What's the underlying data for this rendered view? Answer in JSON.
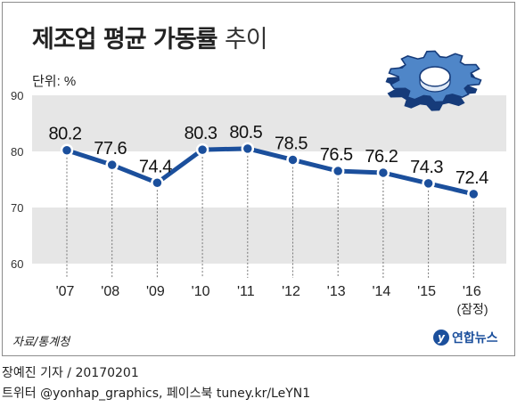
{
  "title": "제조업 평균 가동률",
  "subtitle": "추이",
  "chart_data": {
    "type": "line",
    "ylabel": "단위: %",
    "ylim": [
      60,
      90
    ],
    "yticks": [
      60,
      70,
      80,
      90
    ],
    "categories": [
      "'07",
      "'08",
      "'09",
      "'10",
      "'11",
      "'12",
      "'13",
      "'14",
      "'15",
      "'16"
    ],
    "category_note": "(잠정)",
    "values": [
      80.2,
      77.6,
      74.4,
      80.3,
      80.5,
      78.5,
      76.5,
      76.2,
      74.3,
      72.4
    ],
    "line_color": "#1b4f9c",
    "band_color": "#e6e6e6"
  },
  "source": "자료/통계청",
  "logo_text": "연합뉴스",
  "byline": "장예진 기자 / 20170201",
  "social": "트위터 @yonhap_graphics, 페이스북 tuney.kr/LeYN1"
}
